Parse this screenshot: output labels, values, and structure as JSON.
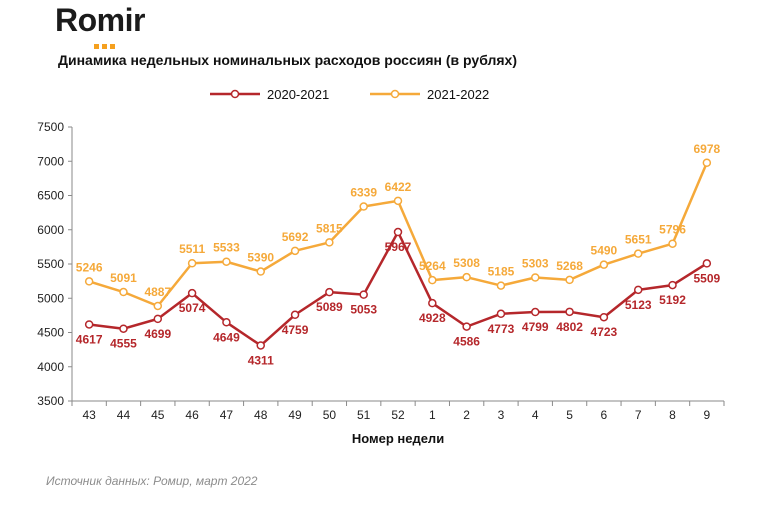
{
  "brand": {
    "name": "Romir",
    "accent": "#f5a01e"
  },
  "title": "Динамика недельных номинальных расходов россиян (в рублях)",
  "source": "Источник данных: Ромир, март 2022",
  "chart_data": {
    "type": "line",
    "title": "Динамика недельных номинальных расходов россиян (в рублях)",
    "xlabel": "Номер недели",
    "ylabel": "",
    "ylim": [
      3500,
      7500
    ],
    "yticks": [
      3500,
      4000,
      4500,
      5000,
      5500,
      6000,
      6500,
      7000,
      7500
    ],
    "categories": [
      "43",
      "44",
      "45",
      "46",
      "47",
      "48",
      "49",
      "50",
      "51",
      "52",
      "1",
      "2",
      "3",
      "4",
      "5",
      "6",
      "7",
      "8",
      "9"
    ],
    "legend_position": "top",
    "series": [
      {
        "name": "2020-2021",
        "color": "#b5272b",
        "label_pos": "below",
        "values": [
          4617,
          4555,
          4699,
          5074,
          4649,
          4311,
          4759,
          5089,
          5053,
          5967,
          4928,
          4586,
          4773,
          4799,
          4802,
          4723,
          5123,
          5192,
          5509
        ]
      },
      {
        "name": "2021-2022",
        "color": "#f5a93a",
        "label_pos": "above",
        "values": [
          5246,
          5091,
          4887,
          5511,
          5533,
          5390,
          5692,
          5815,
          6339,
          6422,
          5264,
          5308,
          5185,
          5303,
          5268,
          5490,
          5651,
          5796,
          6978
        ]
      }
    ]
  }
}
